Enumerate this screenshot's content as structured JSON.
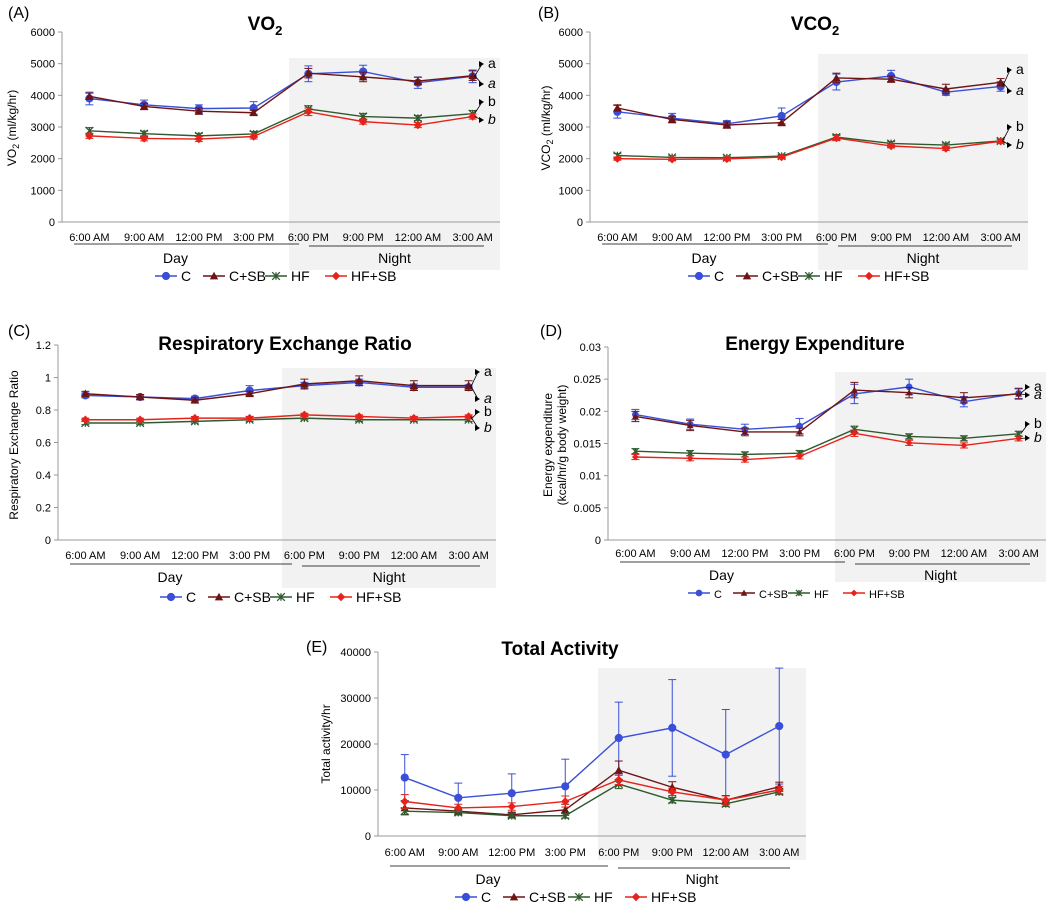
{
  "colors": {
    "C": "#3a4fd8",
    "C+SB": "#6e1414",
    "HF": "#2f5a2f",
    "HF+SB": "#e8221a",
    "night": "#f2f2f2",
    "axis": "#999999",
    "grid": "#cccccc"
  },
  "x_categories": [
    "6:00 AM",
    "9:00 AM",
    "12:00 PM",
    "3:00 PM",
    "6:00 PM",
    "9:00 PM",
    "12:00 AM",
    "3:00 AM"
  ],
  "day_label": "Day",
  "night_label": "Night",
  "legend_names": [
    "C",
    "C+SB",
    "HF",
    "HF+SB"
  ],
  "chart_data": [
    {
      "id": "A",
      "panel_label": "(A)",
      "title_main": "VO",
      "title_sub": "2",
      "ylabel_main": "VO",
      "ylabel_sub": "2",
      "ylabel_rest": " (ml/kg/hr)",
      "type": "line",
      "ylim": [
        0,
        6000
      ],
      "yticks": [
        "0",
        "1000",
        "2000",
        "3000",
        "4000",
        "5000",
        "6000"
      ],
      "series": [
        {
          "name": "C",
          "values": [
            3900,
            3700,
            3580,
            3600,
            4680,
            4750,
            4400,
            4600
          ],
          "err": [
            200,
            150,
            120,
            200,
            250,
            200,
            180,
            200
          ]
        },
        {
          "name": "C+SB",
          "values": [
            3970,
            3650,
            3500,
            3450,
            4700,
            4580,
            4450,
            4620
          ],
          "err": [
            100,
            100,
            100,
            80,
            150,
            150,
            120,
            150
          ]
        },
        {
          "name": "HF",
          "values": [
            2880,
            2790,
            2720,
            2780,
            3570,
            3330,
            3280,
            3420
          ],
          "err": [
            100,
            80,
            80,
            80,
            100,
            100,
            80,
            100
          ]
        },
        {
          "name": "HF+SB",
          "values": [
            2720,
            2640,
            2620,
            2700,
            3480,
            3170,
            3060,
            3330
          ],
          "err": [
            80,
            80,
            80,
            80,
            120,
            80,
            80,
            80
          ]
        }
      ],
      "letters": [
        "a",
        "a",
        "b",
        "b"
      ]
    },
    {
      "id": "B",
      "panel_label": "(B)",
      "title_main": "VCO",
      "title_sub": "2",
      "ylabel_main": "VCO",
      "ylabel_sub": "2",
      "ylabel_rest": " (ml/kg/hr)",
      "type": "line",
      "ylim": [
        0,
        6000
      ],
      "yticks": [
        "0",
        "1000",
        "2000",
        "3000",
        "4000",
        "5000",
        "6000"
      ],
      "series": [
        {
          "name": "C",
          "values": [
            3480,
            3280,
            3100,
            3350,
            4420,
            4610,
            4100,
            4280
          ],
          "err": [
            200,
            150,
            100,
            250,
            250,
            180,
            100,
            150
          ]
        },
        {
          "name": "C+SB",
          "values": [
            3600,
            3240,
            3060,
            3140,
            4550,
            4510,
            4200,
            4410
          ],
          "err": [
            100,
            100,
            100,
            100,
            150,
            100,
            150,
            120
          ]
        },
        {
          "name": "HF",
          "values": [
            2100,
            2040,
            2030,
            2080,
            2680,
            2480,
            2430,
            2560
          ],
          "err": [
            60,
            50,
            50,
            50,
            80,
            60,
            60,
            60
          ]
        },
        {
          "name": "HF+SB",
          "values": [
            2000,
            1980,
            1990,
            2050,
            2650,
            2400,
            2320,
            2550
          ],
          "err": [
            50,
            50,
            50,
            50,
            80,
            60,
            60,
            60
          ]
        }
      ],
      "letters": [
        "a",
        "a",
        "b",
        "b"
      ]
    },
    {
      "id": "C",
      "panel_label": "(C)",
      "title_main": "Respiratory Exchange Ratio",
      "title_sub": "",
      "ylabel_main": "Respiratory Exchange Ratio",
      "ylabel_sub": "",
      "ylabel_rest": "",
      "type": "line",
      "ylim": [
        0,
        1.2
      ],
      "yticks": [
        "0",
        "0.2",
        "0.4",
        "0.6",
        "0.8",
        "1",
        "1.2"
      ],
      "series": [
        {
          "name": "C",
          "values": [
            0.89,
            0.88,
            0.87,
            0.92,
            0.95,
            0.97,
            0.94,
            0.94
          ],
          "err": [
            0.015,
            0.015,
            0.015,
            0.03,
            0.02,
            0.02,
            0.02,
            0.015
          ]
        },
        {
          "name": "C+SB",
          "values": [
            0.9,
            0.88,
            0.86,
            0.9,
            0.96,
            0.98,
            0.95,
            0.95
          ],
          "err": [
            0.015,
            0.015,
            0.015,
            0.015,
            0.03,
            0.03,
            0.03,
            0.03
          ]
        },
        {
          "name": "HF",
          "values": [
            0.72,
            0.72,
            0.73,
            0.74,
            0.75,
            0.74,
            0.74,
            0.74
          ],
          "err": [
            0.01,
            0.01,
            0.01,
            0.01,
            0.01,
            0.01,
            0.01,
            0.01
          ]
        },
        {
          "name": "HF+SB",
          "values": [
            0.74,
            0.74,
            0.75,
            0.75,
            0.77,
            0.76,
            0.75,
            0.76
          ],
          "err": [
            0.01,
            0.01,
            0.01,
            0.01,
            0.01,
            0.01,
            0.01,
            0.01
          ]
        }
      ],
      "letters": [
        "a",
        "a",
        "b",
        "b"
      ]
    },
    {
      "id": "D",
      "panel_label": "(D)",
      "title_main": "Energy Expenditure",
      "title_sub": "",
      "ylabel_line1": "Energy expenditure",
      "ylabel_line2": "(kcal/hr/g body weight)",
      "type": "line",
      "ylim": [
        0,
        0.03
      ],
      "yticks": [
        "0",
        "0.005",
        "0.01",
        "0.015",
        "0.02",
        "0.025",
        "0.03"
      ],
      "series": [
        {
          "name": "C",
          "values": [
            0.0195,
            0.018,
            0.0172,
            0.0177,
            0.0227,
            0.0238,
            0.0215,
            0.0228
          ],
          "err": [
            0.0008,
            0.0008,
            0.0008,
            0.0012,
            0.0015,
            0.0012,
            0.0008,
            0.0008
          ]
        },
        {
          "name": "C+SB",
          "values": [
            0.0192,
            0.0178,
            0.0168,
            0.0168,
            0.0233,
            0.0229,
            0.0221,
            0.0227
          ],
          "err": [
            0.0008,
            0.0008,
            0.0006,
            0.0006,
            0.0012,
            0.0008,
            0.0008,
            0.0008
          ]
        },
        {
          "name": "HF",
          "values": [
            0.0138,
            0.0135,
            0.0133,
            0.0135,
            0.0172,
            0.0161,
            0.0158,
            0.0165
          ],
          "err": [
            0.0004,
            0.0004,
            0.0004,
            0.0004,
            0.0005,
            0.0004,
            0.0004,
            0.0004
          ]
        },
        {
          "name": "HF+SB",
          "values": [
            0.0129,
            0.0127,
            0.0125,
            0.013,
            0.0166,
            0.0151,
            0.0147,
            0.0158
          ],
          "err": [
            0.0004,
            0.0004,
            0.0004,
            0.0004,
            0.0005,
            0.0004,
            0.0004,
            0.0004
          ]
        }
      ],
      "letters": [
        "a",
        "a",
        "b",
        "b"
      ]
    },
    {
      "id": "E",
      "panel_label": "(E)",
      "title_main": "Total Activity",
      "title_sub": "",
      "ylabel_main": "Total activity/hr",
      "ylabel_sub": "",
      "ylabel_rest": "",
      "type": "line",
      "ylim": [
        0,
        40000
      ],
      "yticks": [
        "0",
        "10000",
        "20000",
        "30000",
        "40000"
      ],
      "series": [
        {
          "name": "C",
          "values": [
            12700,
            8300,
            9300,
            10800,
            21300,
            23500,
            17700,
            23900
          ],
          "err": [
            5000,
            3200,
            4200,
            5900,
            7800,
            10500,
            9800,
            12600
          ]
        },
        {
          "name": "C+SB",
          "values": [
            6100,
            5400,
            4600,
            5700,
            14300,
            10600,
            7800,
            10700
          ],
          "err": [
            1500,
            800,
            600,
            1200,
            2000,
            1200,
            1000,
            1000
          ]
        },
        {
          "name": "HF",
          "values": [
            5400,
            5100,
            4400,
            4400,
            11300,
            7800,
            7000,
            9600
          ],
          "err": [
            700,
            500,
            500,
            500,
            1000,
            600,
            600,
            600
          ]
        },
        {
          "name": "HF+SB",
          "values": [
            7500,
            6100,
            6400,
            7500,
            12200,
            9600,
            7800,
            10000
          ],
          "err": [
            1500,
            800,
            800,
            1200,
            1000,
            800,
            900,
            800
          ]
        }
      ],
      "letters": []
    }
  ]
}
